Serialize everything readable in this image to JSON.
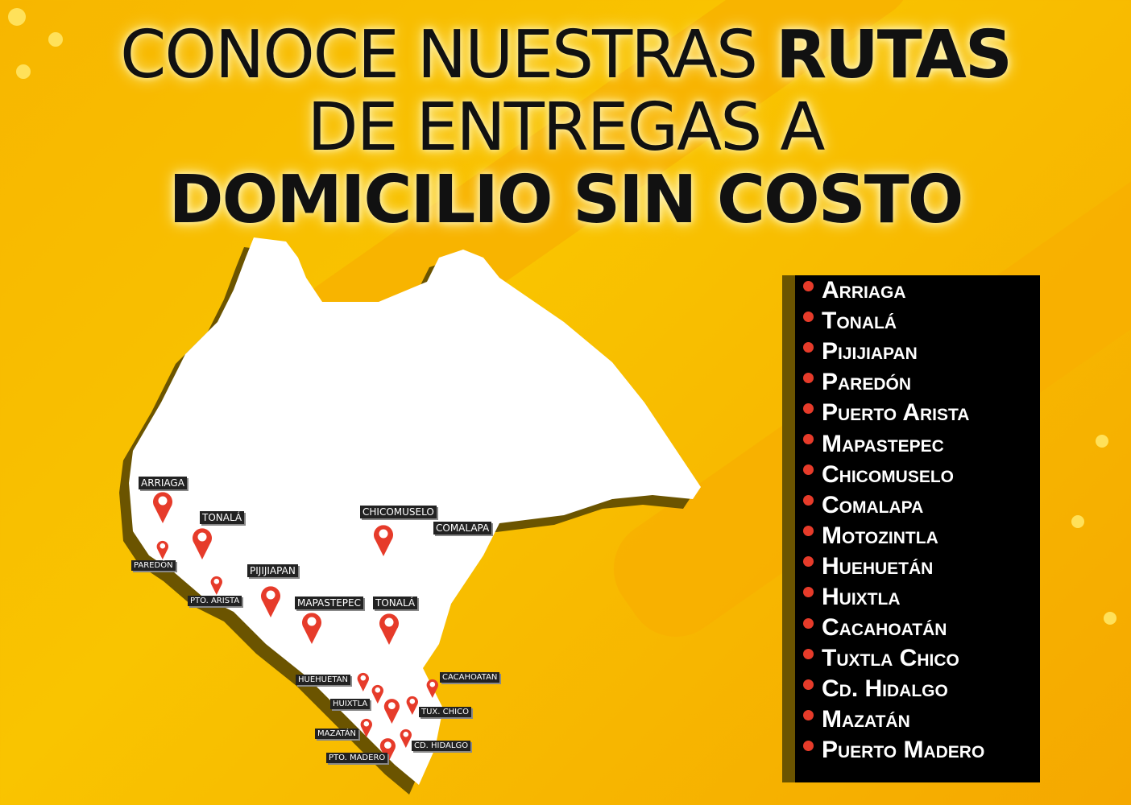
{
  "headline": {
    "line1_regular": "CONOCE NUESTRAS ",
    "line1_bold": "RUTAS",
    "line2": "DE ENTREGAS A",
    "line3": "DOMICILIO SIN COSTO"
  },
  "colors": {
    "background": "#f9c400",
    "pin": "#e63b2a",
    "panel": "#000000"
  },
  "map_labels": [
    "ARRIAGA",
    "TONALÁ",
    "PAREDÓN",
    "PTO. ARISTA",
    "PIJIJIAPAN",
    "MAPASTEPEC",
    "TONALÁ",
    "CHICOMUSELO",
    "COMALAPA",
    "HUEHUETAN",
    "HUIXTLA",
    "MAZATÁN",
    "PTO. MADERO",
    "CACAHOATAN",
    "TUX. CHICO",
    "CD. HIDALGO"
  ],
  "routes": [
    "Arriaga",
    "Tonalá",
    "Pijijiapan",
    "Paredón",
    "Puerto Arista",
    "Mapastepec",
    "Chicomuselo",
    "Comalapa",
    "Motozintla",
    "Huehuetán",
    "Huixtla",
    "Cacahoatán",
    "Tuxtla Chico",
    "Cd. Hidalgo",
    "Mazatán",
    "Puerto Madero"
  ]
}
